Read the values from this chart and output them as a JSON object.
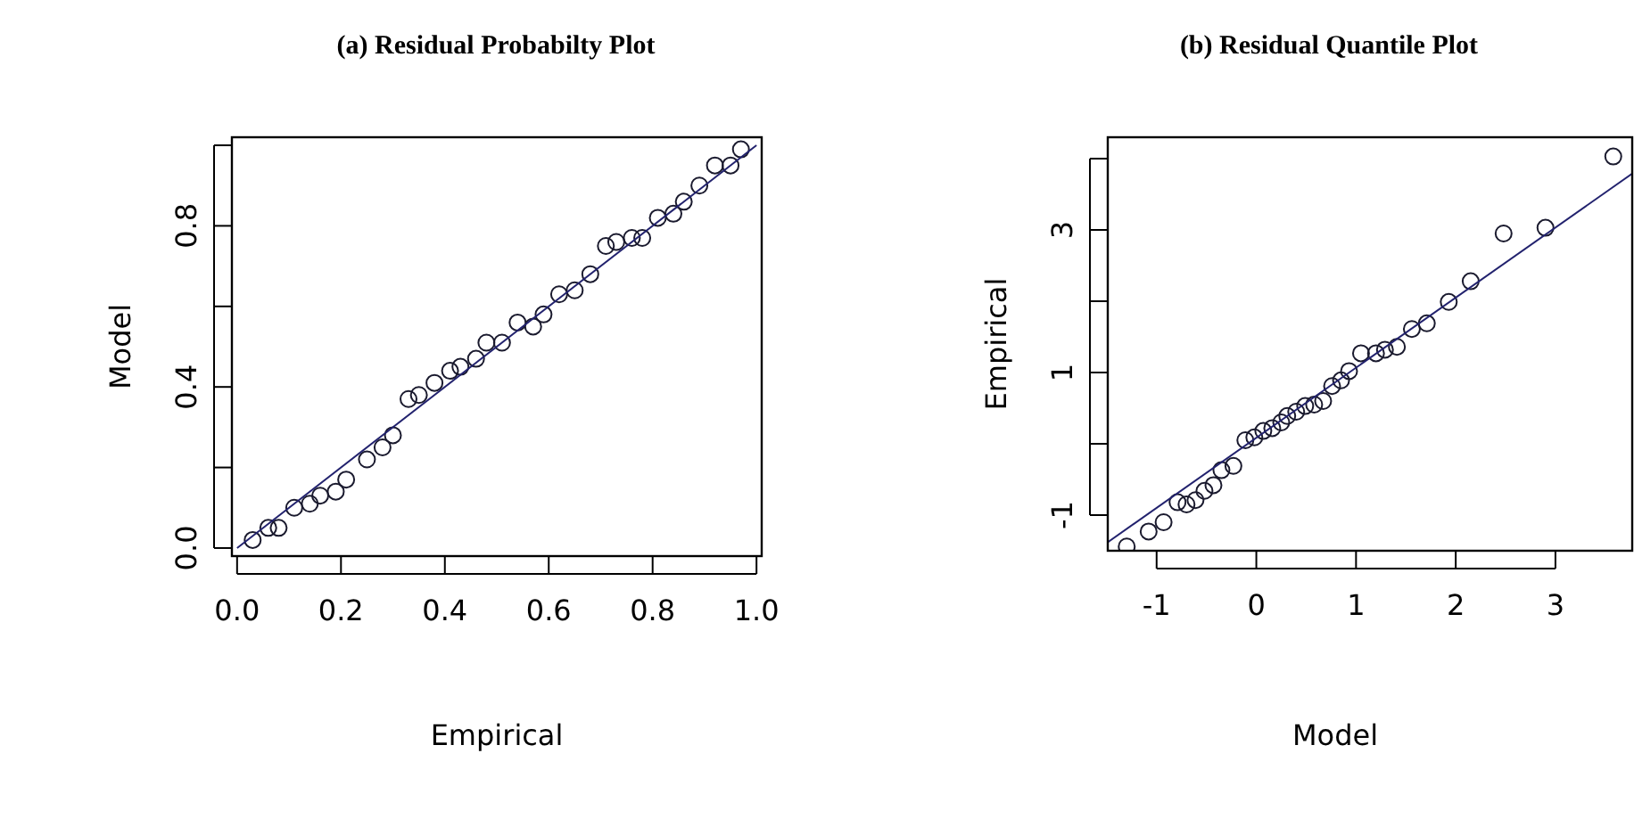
{
  "chart_data": [
    {
      "type": "scatter",
      "title": "(a) Residual Probabilty Plot",
      "xlabel": "Empirical",
      "ylabel": "Model",
      "xlim": [
        -0.01,
        1.01
      ],
      "ylim": [
        -0.02,
        1.02
      ],
      "xticks": [
        {
          "value": 0,
          "label": "0.0"
        },
        {
          "value": 0.2,
          "label": "0.2"
        },
        {
          "value": 0.4,
          "label": "0.4"
        },
        {
          "value": 0.6,
          "label": "0.6"
        },
        {
          "value": 0.8,
          "label": "0.8"
        },
        {
          "value": 1,
          "label": "1.0"
        }
      ],
      "yticks": [
        {
          "value": 0,
          "label": "0.0"
        },
        {
          "value": 0.2,
          "label": null
        },
        {
          "value": 0.4,
          "label": "0.4"
        },
        {
          "value": 0.6,
          "label": null
        },
        {
          "value": 0.8,
          "label": "0.8"
        },
        {
          "value": 1,
          "label": null
        }
      ],
      "series": [
        {
          "marker": "circle",
          "color": "#1a1a2e",
          "x": [
            0.03,
            0.06,
            0.08,
            0.11,
            0.14,
            0.16,
            0.19,
            0.21,
            0.25,
            0.28,
            0.3,
            0.33,
            0.35,
            0.38,
            0.41,
            0.43,
            0.46,
            0.48,
            0.51,
            0.54,
            0.57,
            0.59,
            0.62,
            0.65,
            0.68,
            0.71,
            0.73,
            0.76,
            0.78,
            0.81,
            0.84,
            0.86,
            0.89,
            0.92,
            0.95,
            0.97
          ],
          "values": [
            0.02,
            0.05,
            0.05,
            0.1,
            0.11,
            0.13,
            0.14,
            0.17,
            0.22,
            0.25,
            0.28,
            0.37,
            0.38,
            0.41,
            0.44,
            0.45,
            0.47,
            0.51,
            0.51,
            0.56,
            0.55,
            0.58,
            0.63,
            0.64,
            0.68,
            0.75,
            0.76,
            0.77,
            0.77,
            0.82,
            0.83,
            0.86,
            0.9,
            0.95,
            0.95,
            0.99
          ]
        },
        {
          "type": "line",
          "color": "#22226e",
          "x": [
            0,
            1
          ],
          "values": [
            0,
            1
          ]
        }
      ]
    },
    {
      "type": "scatter",
      "title": "(b) Residual Quantile Plot",
      "xlabel": "Model",
      "ylabel": "Empirical",
      "xlim": [
        -1.49,
        3.77
      ],
      "ylim": [
        -1.5,
        4.3
      ],
      "xticks": [
        -1,
        0,
        1,
        2,
        3
      ],
      "yticks": [
        {
          "value": -1,
          "label": "-1"
        },
        {
          "value": 0,
          "label": null
        },
        {
          "value": 1,
          "label": "1"
        },
        {
          "value": 2,
          "label": null
        },
        {
          "value": 3,
          "label": "3"
        },
        {
          "value": 4,
          "label": null
        }
      ],
      "series": [
        {
          "marker": "circle",
          "color": "#1a1a2e",
          "x": [
            -1.3,
            -1.08,
            -0.93,
            -0.79,
            -0.7,
            -0.61,
            -0.52,
            -0.43,
            -0.35,
            -0.23,
            -0.11,
            -0.02,
            0.07,
            0.16,
            0.25,
            0.31,
            0.4,
            0.49,
            0.58,
            0.67,
            0.76,
            0.85,
            0.93,
            1.05,
            1.2,
            1.29,
            1.41,
            1.56,
            1.71,
            1.93,
            2.15,
            2.48,
            2.9,
            3.58
          ],
          "values": [
            -1.44,
            -1.23,
            -1.1,
            -0.82,
            -0.85,
            -0.79,
            -0.66,
            -0.58,
            -0.37,
            -0.31,
            0.05,
            0.09,
            0.18,
            0.22,
            0.3,
            0.39,
            0.45,
            0.53,
            0.55,
            0.6,
            0.81,
            0.89,
            1.02,
            1.27,
            1.27,
            1.32,
            1.36,
            1.61,
            1.69,
            1.99,
            2.28,
            2.95,
            3.03,
            4.03
          ]
        },
        {
          "type": "line",
          "color": "#22226e",
          "x": [
            -1.49,
            3.77
          ],
          "values": [
            -1.38,
            3.79
          ]
        }
      ]
    }
  ]
}
